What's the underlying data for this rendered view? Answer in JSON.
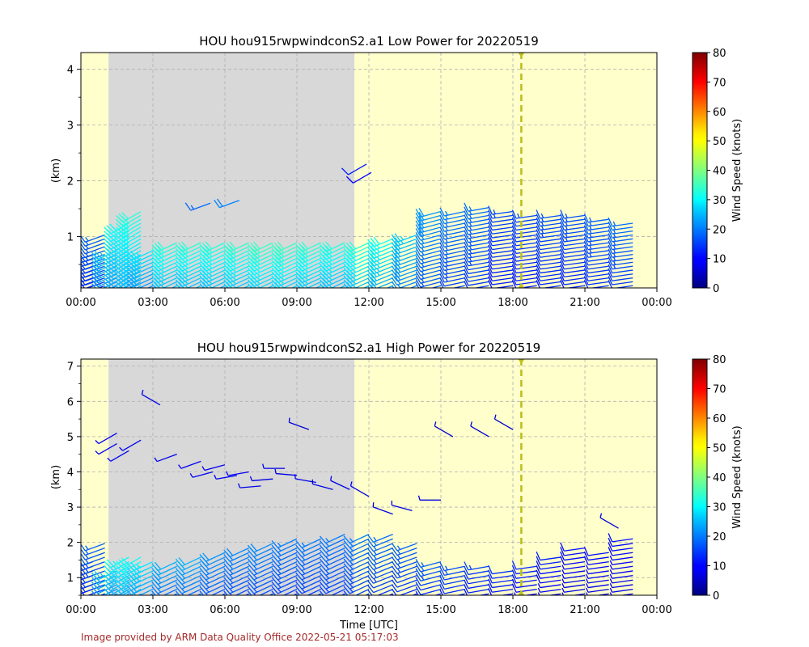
{
  "footer": "Image provided by ARM Data Quality Office 2022-05-21 05:17:03",
  "colors": {
    "night": "#d8d8d8",
    "day": "#ffffcc",
    "marker": "#bdbd1a",
    "footer": "#a52a2a",
    "grid": "#b0b0b0"
  },
  "chart_data": [
    {
      "type": "wind-barb",
      "title": "HOU hou915rwpwindconS2.a1 Low Power for 20220519",
      "ylabel": "(km)",
      "xlabel": "",
      "x_ticks": [
        "00:00",
        "03:00",
        "06:00",
        "09:00",
        "12:00",
        "15:00",
        "18:00",
        "21:00",
        "00:00"
      ],
      "xlim_hours": [
        0,
        24
      ],
      "ylim_km": [
        0.08,
        4.3
      ],
      "y_ticks": [
        1,
        2,
        3,
        4
      ],
      "shading": [
        {
          "kind": "day",
          "from_hour": 0,
          "to_hour": 1.15
        },
        {
          "kind": "night",
          "from_hour": 1.15,
          "to_hour": 11.4
        },
        {
          "kind": "day",
          "from_hour": 11.4,
          "to_hour": 24
        }
      ],
      "marker_hour": 18.35,
      "colorbar": {
        "label": "Wind Speed (knots)",
        "min": 0,
        "max": 80,
        "ticks": [
          0,
          10,
          20,
          30,
          40,
          50,
          60,
          70,
          80
        ]
      },
      "profiles": [
        {
          "hour": 0.5,
          "top": 0.7,
          "speed": 15,
          "dir": 250
        },
        {
          "hour": 1.0,
          "top": 1.1,
          "speed": 16,
          "dir": 250
        },
        {
          "hour": 1.5,
          "top": 0.8,
          "speed": 24,
          "dir": 245
        },
        {
          "hour": 2.0,
          "top": 1.3,
          "speed": 28,
          "dir": 240
        },
        {
          "hour": 2.5,
          "top": 1.5,
          "speed": 30,
          "dir": 240
        },
        {
          "hour": 3.0,
          "top": 0.8,
          "speed": 26,
          "dir": 245
        },
        {
          "hour": 4.0,
          "top": 0.9,
          "speed": 30,
          "dir": 245
        },
        {
          "hour": 5.0,
          "top": 0.9,
          "speed": 30,
          "dir": 245
        },
        {
          "hour": 6.0,
          "top": 0.9,
          "speed": 30,
          "dir": 245
        },
        {
          "hour": 7.0,
          "top": 0.95,
          "speed": 31,
          "dir": 245
        },
        {
          "hour": 8.0,
          "top": 0.95,
          "speed": 32,
          "dir": 245
        },
        {
          "hour": 9.0,
          "top": 0.95,
          "speed": 32,
          "dir": 245
        },
        {
          "hour": 10.0,
          "top": 0.95,
          "speed": 31,
          "dir": 245
        },
        {
          "hour": 11.0,
          "top": 0.95,
          "speed": 30,
          "dir": 245
        },
        {
          "hour": 12.0,
          "top": 0.9,
          "speed": 30,
          "dir": 245
        },
        {
          "hour": 13.0,
          "top": 1.0,
          "speed": 28,
          "dir": 248
        },
        {
          "hour": 14.0,
          "top": 1.1,
          "speed": 24,
          "dir": 250
        },
        {
          "hour": 15.0,
          "top": 1.5,
          "speed": 20,
          "dir": 255
        },
        {
          "hour": 16.0,
          "top": 1.5,
          "speed": 18,
          "dir": 258
        },
        {
          "hour": 17.0,
          "top": 1.55,
          "speed": 17,
          "dir": 260
        },
        {
          "hour": 18.0,
          "top": 1.5,
          "speed": 14,
          "dir": 262
        },
        {
          "hour": 19.0,
          "top": 1.45,
          "speed": 14,
          "dir": 262
        },
        {
          "hour": 20.0,
          "top": 1.45,
          "speed": 15,
          "dir": 262
        },
        {
          "hour": 21.0,
          "top": 1.4,
          "speed": 15,
          "dir": 262
        },
        {
          "hour": 22.0,
          "top": 1.35,
          "speed": 16,
          "dir": 262
        },
        {
          "hour": 23.0,
          "top": 1.3,
          "speed": 17,
          "dir": 262
        }
      ],
      "extra_barbs": [
        {
          "hour": 5.4,
          "km": 1.6,
          "speed": 18,
          "dir": 250
        },
        {
          "hour": 6.6,
          "km": 1.65,
          "speed": 20,
          "dir": 250
        },
        {
          "hour": 11.9,
          "km": 2.3,
          "speed": 12,
          "dir": 240
        },
        {
          "hour": 12.1,
          "km": 2.15,
          "speed": 10,
          "dir": 240
        }
      ]
    },
    {
      "type": "wind-barb",
      "title": "HOU hou915rwpwindconS2.a1 High Power for 20220519",
      "ylabel": "(km)",
      "xlabel": "Time [UTC]",
      "x_ticks": [
        "00:00",
        "03:00",
        "06:00",
        "09:00",
        "12:00",
        "15:00",
        "18:00",
        "21:00",
        "00:00"
      ],
      "xlim_hours": [
        0,
        24
      ],
      "ylim_km": [
        0.5,
        7.2
      ],
      "y_ticks": [
        1,
        2,
        3,
        4,
        5,
        6,
        7
      ],
      "shading": [
        {
          "kind": "day",
          "from_hour": 0,
          "to_hour": 1.15
        },
        {
          "kind": "night",
          "from_hour": 1.15,
          "to_hour": 11.4
        },
        {
          "kind": "day",
          "from_hour": 11.4,
          "to_hour": 24
        }
      ],
      "marker_hour": 18.35,
      "colorbar": {
        "label": "Wind Speed (knots)",
        "min": 0,
        "max": 80,
        "ticks": [
          0,
          10,
          20,
          30,
          40,
          50,
          60,
          70,
          80
        ]
      },
      "profiles": [
        {
          "hour": 0.5,
          "top": 1.5,
          "speed": 14,
          "dir": 250
        },
        {
          "hour": 1.0,
          "top": 2.0,
          "speed": 16,
          "dir": 250
        },
        {
          "hour": 1.5,
          "top": 1.3,
          "speed": 24,
          "dir": 245
        },
        {
          "hour": 2.0,
          "top": 1.6,
          "speed": 27,
          "dir": 240
        },
        {
          "hour": 2.5,
          "top": 1.7,
          "speed": 29,
          "dir": 240
        },
        {
          "hour": 3.0,
          "top": 1.5,
          "speed": 26,
          "dir": 245
        },
        {
          "hour": 4.0,
          "top": 1.5,
          "speed": 22,
          "dir": 245
        },
        {
          "hour": 5.0,
          "top": 1.6,
          "speed": 22,
          "dir": 245
        },
        {
          "hour": 6.0,
          "top": 1.8,
          "speed": 20,
          "dir": 245
        },
        {
          "hour": 7.0,
          "top": 1.9,
          "speed": 19,
          "dir": 245
        },
        {
          "hour": 8.0,
          "top": 2.0,
          "speed": 19,
          "dir": 245
        },
        {
          "hour": 9.0,
          "top": 2.1,
          "speed": 18,
          "dir": 245
        },
        {
          "hour": 10.0,
          "top": 2.2,
          "speed": 18,
          "dir": 245
        },
        {
          "hour": 11.0,
          "top": 2.3,
          "speed": 18,
          "dir": 245
        },
        {
          "hour": 12.0,
          "top": 2.3,
          "speed": 18,
          "dir": 245
        },
        {
          "hour": 13.0,
          "top": 2.3,
          "speed": 17,
          "dir": 248
        },
        {
          "hour": 14.0,
          "top": 2.0,
          "speed": 16,
          "dir": 250
        },
        {
          "hour": 15.0,
          "top": 1.5,
          "speed": 16,
          "dir": 255
        },
        {
          "hour": 16.0,
          "top": 1.4,
          "speed": 15,
          "dir": 258
        },
        {
          "hour": 17.0,
          "top": 1.4,
          "speed": 14,
          "dir": 260
        },
        {
          "hour": 18.0,
          "top": 1.3,
          "speed": 13,
          "dir": 262
        },
        {
          "hour": 19.0,
          "top": 1.4,
          "speed": 12,
          "dir": 262
        },
        {
          "hour": 20.0,
          "top": 1.6,
          "speed": 11,
          "dir": 262
        },
        {
          "hour": 21.0,
          "top": 1.9,
          "speed": 10,
          "dir": 262
        },
        {
          "hour": 22.0,
          "top": 1.8,
          "speed": 10,
          "dir": 262
        },
        {
          "hour": 23.0,
          "top": 2.2,
          "speed": 10,
          "dir": 262
        }
      ],
      "extra_barbs": [
        {
          "hour": 1.5,
          "km": 4.8,
          "speed": 9,
          "dir": 240
        },
        {
          "hour": 1.5,
          "km": 5.1,
          "speed": 9,
          "dir": 240
        },
        {
          "hour": 2.0,
          "km": 4.6,
          "speed": 9,
          "dir": 240
        },
        {
          "hour": 2.5,
          "km": 4.9,
          "speed": 9,
          "dir": 240
        },
        {
          "hour": 3.3,
          "km": 5.9,
          "speed": 8,
          "dir": 300
        },
        {
          "hour": 4.0,
          "km": 4.5,
          "speed": 9,
          "dir": 250
        },
        {
          "hour": 5.0,
          "km": 4.3,
          "speed": 9,
          "dir": 250
        },
        {
          "hour": 5.5,
          "km": 4.0,
          "speed": 9,
          "dir": 255
        },
        {
          "hour": 6.0,
          "km": 4.2,
          "speed": 9,
          "dir": 255
        },
        {
          "hour": 6.5,
          "km": 3.9,
          "speed": 9,
          "dir": 260
        },
        {
          "hour": 7.0,
          "km": 4.0,
          "speed": 9,
          "dir": 260
        },
        {
          "hour": 7.5,
          "km": 3.6,
          "speed": 8,
          "dir": 265
        },
        {
          "hour": 8.0,
          "km": 3.8,
          "speed": 8,
          "dir": 265
        },
        {
          "hour": 8.5,
          "km": 4.1,
          "speed": 8,
          "dir": 270
        },
        {
          "hour": 9.0,
          "km": 3.9,
          "speed": 8,
          "dir": 275
        },
        {
          "hour": 9.5,
          "km": 5.2,
          "speed": 7,
          "dir": 290
        },
        {
          "hour": 9.8,
          "km": 3.7,
          "speed": 8,
          "dir": 280
        },
        {
          "hour": 10.5,
          "km": 3.5,
          "speed": 8,
          "dir": 285
        },
        {
          "hour": 11.2,
          "km": 3.5,
          "speed": 8,
          "dir": 295
        },
        {
          "hour": 12.0,
          "km": 3.3,
          "speed": 8,
          "dir": 300
        },
        {
          "hour": 13.0,
          "km": 2.8,
          "speed": 8,
          "dir": 290
        },
        {
          "hour": 13.8,
          "km": 2.9,
          "speed": 8,
          "dir": 285
        },
        {
          "hour": 15.0,
          "km": 3.2,
          "speed": 7,
          "dir": 270
        },
        {
          "hour": 15.5,
          "km": 5.0,
          "speed": 6,
          "dir": 300
        },
        {
          "hour": 17.0,
          "km": 5.0,
          "speed": 6,
          "dir": 300
        },
        {
          "hour": 18.0,
          "km": 5.2,
          "speed": 6,
          "dir": 300
        },
        {
          "hour": 22.4,
          "km": 2.4,
          "speed": 7,
          "dir": 300
        }
      ]
    }
  ]
}
